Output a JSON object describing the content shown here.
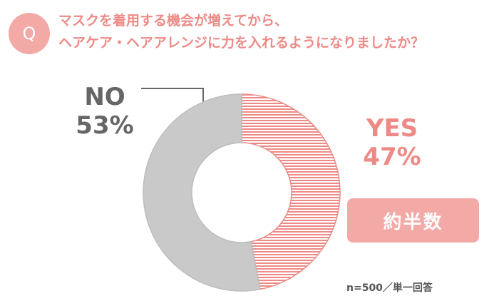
{
  "question": {
    "badge": "Q",
    "line1": "マスクを着用する機会が増えてから、",
    "line2": "ヘアケア・ヘアアレンジに力を入れるようになりましたか？"
  },
  "chart_data": {
    "type": "pie",
    "variant": "donut",
    "slices": [
      {
        "label": "YES",
        "value": 47,
        "display": "47%",
        "color": "#ee8a86",
        "fill": "horizontal-stripes"
      },
      {
        "label": "NO",
        "value": 53,
        "display": "53%",
        "color": "#c9c9c9",
        "fill": "solid"
      }
    ],
    "callout": "約半数",
    "note": "n=500／単一回答"
  }
}
